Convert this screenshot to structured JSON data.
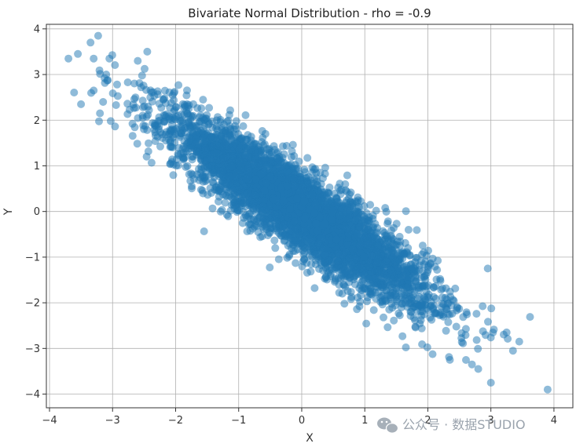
{
  "chart_data": {
    "type": "scatter",
    "title": "Bivariate Normal Distribution - rho = -0.9",
    "xlabel": "X",
    "ylabel": "Y",
    "xlim": [
      -4.05,
      4.3
    ],
    "ylim": [
      -4.3,
      4.1
    ],
    "xticks": [
      -4,
      -3,
      -2,
      -1,
      0,
      1,
      2,
      3,
      4
    ],
    "xtick_labels": [
      "−4",
      "−3",
      "−2",
      "−1",
      "0",
      "1",
      "2",
      "3",
      "4"
    ],
    "yticks": [
      -4,
      -3,
      -2,
      -1,
      0,
      1,
      2,
      3,
      4
    ],
    "ytick_labels": [
      "−4",
      "−3",
      "−2",
      "−1",
      "0",
      "1",
      "2",
      "3",
      "4"
    ],
    "grid": true,
    "marker_color": "#1f77b4",
    "marker_alpha": 0.5,
    "distribution": {
      "mean": [
        0,
        0
      ],
      "std": [
        1,
        1
      ],
      "rho": -0.9,
      "n_points": 5000
    },
    "extreme_points": [
      {
        "x": -3.7,
        "y": 3.35
      },
      {
        "x": -3.55,
        "y": 3.45
      },
      {
        "x": -3.5,
        "y": 2.35
      },
      {
        "x": -3.35,
        "y": 3.7
      },
      {
        "x": -3.3,
        "y": 3.35
      },
      {
        "x": -3.3,
        "y": 2.65
      },
      {
        "x": -3.2,
        "y": 2.15
      },
      {
        "x": -3.15,
        "y": 2.4
      },
      {
        "x": -3.1,
        "y": 3.0
      },
      {
        "x": -3.05,
        "y": 3.35
      },
      {
        "x": -2.45,
        "y": 3.5
      },
      {
        "x": -2.6,
        "y": 3.3
      },
      {
        "x": 2.95,
        "y": -1.25
      },
      {
        "x": 3.0,
        "y": -3.75
      },
      {
        "x": 3.9,
        "y": -3.9
      },
      {
        "x": 3.45,
        "y": -2.85
      },
      {
        "x": 3.35,
        "y": -3.05
      },
      {
        "x": 3.25,
        "y": -2.65
      },
      {
        "x": 2.35,
        "y": -3.25
      },
      {
        "x": 2.7,
        "y": -3.35
      },
      {
        "x": 2.8,
        "y": -3.45
      }
    ]
  },
  "watermark": {
    "text": "公众号 · 数据STUDIO",
    "icon": "wechat-icon"
  }
}
